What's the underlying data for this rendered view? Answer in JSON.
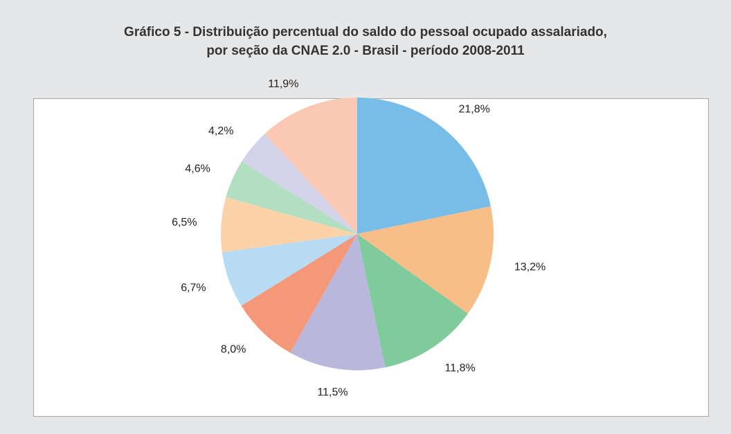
{
  "chart_data": {
    "type": "pie",
    "title": [
      "Gráfico 5 - Distribuição percentual do saldo do pessoal ocupado assalariado,",
      "por seção da CNAE 2.0 - Brasil - período 2008-2011"
    ],
    "values": [
      21.8,
      13.2,
      11.8,
      11.5,
      8.0,
      6.7,
      6.5,
      4.6,
      4.2,
      11.9
    ],
    "value_labels": [
      "21,8%",
      "13,2%",
      "11,8%",
      "11,5%",
      "8,0%",
      "6,7%",
      "6,5%",
      "4,6%",
      "4,2%",
      "11,9%"
    ],
    "colors": [
      "#77bde8",
      "#f9bd87",
      "#80cb9b",
      "#b9b7dc",
      "#f5987a",
      "#b8dbf4",
      "#fcd2a8",
      "#b2dfc2",
      "#d3d3ea",
      "#fbc9b3"
    ]
  }
}
